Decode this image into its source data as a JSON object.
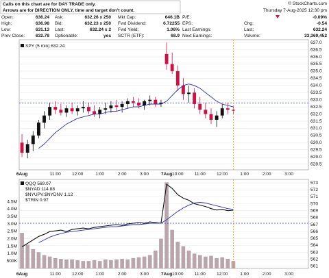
{
  "header": {
    "notice": [
      "Calls on this chart are for DAY TRADE only.",
      "Arrows are for DIRECTION ONLY, time and target don't count."
    ],
    "copyright": "© StockCharts.com",
    "datetime": "Thursday 7-Aug-2025 12:30 pm",
    "quote": {
      "rows": [
        [
          {
            "label": "Open:",
            "value": "636.24"
          },
          {
            "label": "Ask:",
            "value": "632.26 x 250"
          },
          {
            "label": "Mkt Cap:",
            "value": "646.1B"
          },
          {
            "label": "P/E:"
          },
          {
            "value": "-0.09%"
          }
        ],
        [
          {
            "label": "High:",
            "value": "636.98"
          },
          {
            "label": "Bid:",
            "value": "632.23 x 250"
          },
          {
            "label": "Fwd Dividend:",
            "value": "6.72255"
          },
          {
            "label": "EPS:"
          },
          {
            "label": "Chg:",
            "value": "-0.54"
          }
        ],
        [
          {
            "label": "Low:",
            "value": "631.13"
          },
          {
            "label": "Last:",
            "value": "632.24 x 2"
          },
          {
            "label": "Fwd Yield:",
            "value": "1.06%"
          },
          {
            "label": "Last Earnings:"
          },
          {
            "label": "Last:",
            "value": "632.24"
          }
        ],
        [
          {
            "label": "Prev Close:",
            "value": "632.78"
          },
          {
            "label": "Optionable:",
            "value": "yes"
          },
          {
            "label": "SCTR (ETF):",
            "value": "68.9"
          },
          {
            "label": "Next Earnings:"
          },
          {
            "label": "Volume:",
            "value": "33,369,452"
          }
        ]
      ]
    }
  },
  "chart_data": [
    {
      "type": "candlestick",
      "legend": "SPY (5 min) 632.24",
      "categories": [
        "6Aug",
        null,
        null,
        null,
        null,
        null,
        "11:00",
        null,
        null,
        null,
        "12:00",
        null,
        null,
        null,
        "1:00",
        null,
        null,
        null,
        "2:00",
        null,
        null,
        null,
        "3:00",
        null,
        null,
        null,
        "7Aug",
        null,
        "10:00",
        null,
        null,
        null,
        "11:00",
        null,
        null,
        null,
        "12:00",
        null,
        null,
        null,
        "1:00",
        null,
        null,
        null,
        "2:00",
        null,
        null,
        null,
        "3:00",
        null,
        null,
        null
      ],
      "open": [
        630.0,
        629.3,
        629.9,
        630.5,
        631.4,
        631.9,
        632.5,
        632.3,
        632.1,
        632.4,
        632.2,
        632.4,
        632.5,
        632.2,
        632.0,
        632.3,
        632.4,
        632.6,
        632.5,
        632.7,
        632.9,
        632.8,
        632.6,
        632.9,
        633.0,
        632.7,
        636.2,
        635.5,
        635.0,
        634.0,
        633.4,
        633.5,
        632.7,
        632.3,
        632.0,
        631.6,
        631.9,
        632.4,
        632.3,
        null,
        null,
        null,
        null,
        null,
        null,
        null,
        null,
        null,
        null,
        null,
        null,
        null
      ],
      "high": [
        630.6,
        630.2,
        630.8,
        631.6,
        632.2,
        632.8,
        632.9,
        632.7,
        632.6,
        632.8,
        632.6,
        632.9,
        632.8,
        632.6,
        632.5,
        632.8,
        632.9,
        633.0,
        632.9,
        633.1,
        633.2,
        633.1,
        633.0,
        633.3,
        633.2,
        633.0,
        637.0,
        636.3,
        635.4,
        634.5,
        634.0,
        633.8,
        633.2,
        632.8,
        632.4,
        632.2,
        632.7,
        632.8,
        632.6,
        null,
        null,
        null,
        null,
        null,
        null,
        null,
        null,
        null,
        null,
        null,
        null,
        null
      ],
      "low": [
        629.0,
        628.9,
        629.4,
        630.3,
        631.0,
        631.6,
        632.0,
        631.9,
        631.8,
        632.0,
        631.9,
        632.1,
        632.0,
        631.8,
        631.7,
        632.0,
        632.1,
        632.2,
        632.1,
        632.4,
        632.5,
        632.4,
        632.3,
        632.6,
        632.5,
        632.5,
        635.1,
        634.8,
        633.6,
        633.0,
        632.8,
        632.4,
        632.0,
        631.7,
        631.3,
        631.1,
        631.7,
        632.0,
        632.0,
        null,
        null,
        null,
        null,
        null,
        null,
        null,
        null,
        null,
        null,
        null,
        null,
        null
      ],
      "close": [
        629.3,
        629.9,
        630.5,
        631.4,
        631.9,
        632.5,
        632.3,
        632.1,
        632.4,
        632.2,
        632.4,
        632.5,
        632.2,
        632.0,
        632.3,
        632.4,
        632.6,
        632.5,
        632.7,
        632.9,
        632.8,
        632.6,
        632.9,
        633.0,
        632.7,
        632.8,
        635.5,
        635.0,
        634.0,
        633.4,
        633.5,
        632.7,
        632.3,
        632.0,
        631.6,
        631.9,
        632.4,
        632.3,
        632.24,
        null,
        null,
        null,
        null,
        null,
        null,
        null,
        null,
        null,
        null,
        null,
        null,
        null
      ],
      "up_color": "#111111",
      "down_color": "#cc1144",
      "ma": {
        "color": "#2a2ab0",
        "values": [
          null,
          null,
          null,
          629.6,
          629.9,
          630.3,
          630.7,
          631.0,
          631.3,
          631.5,
          631.7,
          631.8,
          631.9,
          632.0,
          632.0,
          632.1,
          632.2,
          632.2,
          632.3,
          632.4,
          632.5,
          632.5,
          632.6,
          632.7,
          632.7,
          632.7,
          632.9,
          633.3,
          633.7,
          634.0,
          634.1,
          634.0,
          633.8,
          633.5,
          633.2,
          632.9,
          632.7,
          632.6,
          632.5,
          null,
          null,
          null,
          null,
          null,
          null,
          null,
          null,
          null,
          null,
          null,
          null,
          null
        ]
      },
      "ref_line": 632.78,
      "ylim": [
        628.1,
        637.2
      ],
      "yticks": [
        628.5,
        {
          "value": 629,
          "label": "629.0"
        },
        629.5,
        {
          "value": 630,
          "label": "630.0"
        },
        630.5,
        {
          "value": 631,
          "label": "631.0"
        },
        631.5,
        {
          "value": 632,
          "label": "632.0"
        },
        632.5,
        {
          "value": 633,
          "label": "633.0"
        },
        633.5,
        {
          "value": 634,
          "label": "634.0"
        },
        634.5,
        {
          "value": 635,
          "label": "635.0"
        },
        635.5,
        {
          "value": 636,
          "label": "636.0"
        },
        636.5,
        {
          "value": 637,
          "label": "637.0"
        }
      ],
      "grid": true
    },
    {
      "type": "line",
      "categories": [
        "6Aug",
        null,
        null,
        null,
        null,
        null,
        "11:00",
        null,
        null,
        null,
        "12:00",
        null,
        null,
        null,
        "1:00",
        null,
        null,
        null,
        "2:00",
        null,
        null,
        null,
        "3:00",
        null,
        null,
        null,
        "7Aug",
        null,
        "10:00",
        null,
        null,
        null,
        "11:00",
        null,
        null,
        null,
        "12:00",
        null,
        null,
        null,
        "1:00",
        null,
        null,
        null,
        "2:00",
        null,
        null,
        null,
        "3:00",
        null,
        null,
        null
      ],
      "series": [
        {
          "name": "QQQ 569.07",
          "color": "#111111",
          "values": [
            563.8,
            564.3,
            564.8,
            565.3,
            565.6,
            566.0,
            566.1,
            566.2,
            566.0,
            566.3,
            566.4,
            566.5,
            566.4,
            566.6,
            566.7,
            566.8,
            566.9,
            567.0,
            566.9,
            567.1,
            567.2,
            567.3,
            567.2,
            567.4,
            567.3,
            567.2,
            572.8,
            572.2,
            571.3,
            570.8,
            570.5,
            570.0,
            569.8,
            569.6,
            569.3,
            569.1,
            569.2,
            569.0,
            569.07,
            null,
            null,
            null,
            null,
            null,
            null,
            null,
            null,
            null,
            null,
            null,
            null,
            null
          ]
        }
      ],
      "indicators": [
        "$NYAD 114.88",
        "$NYUPV:$NYDNV 1.12",
        "$TRIN 0.97"
      ],
      "ma": {
        "color": "#2a2ab0",
        "values": [
          null,
          null,
          null,
          564.4,
          564.8,
          565.2,
          565.5,
          565.7,
          565.9,
          566.0,
          566.1,
          566.2,
          566.3,
          566.4,
          566.5,
          566.6,
          566.7,
          566.7,
          566.8,
          566.9,
          567.0,
          567.0,
          567.1,
          567.2,
          567.2,
          567.2,
          567.7,
          568.3,
          568.9,
          569.4,
          569.8,
          570.1,
          570.2,
          570.1,
          569.9,
          569.7,
          569.5,
          569.3,
          569.2,
          null,
          null,
          null,
          null,
          null,
          null,
          null,
          null,
          null,
          null,
          null,
          null,
          null
        ]
      },
      "ref_line": 567.2,
      "ylim": [
        560.7,
        573.5
      ],
      "yticks": [
        561,
        562,
        563,
        564,
        565,
        566,
        567,
        568,
        569,
        570,
        571,
        572,
        573
      ],
      "volume": {
        "color": "#b9a6ad",
        "values": [
          2400000,
          1600000,
          1300000,
          1100000,
          900000,
          800000,
          700000,
          650000,
          600000,
          600000,
          550000,
          500000,
          500000,
          550000,
          500000,
          600000,
          550000,
          600000,
          650000,
          600000,
          700000,
          750000,
          800000,
          900000,
          1200000,
          2000000,
          5800000,
          2600000,
          1800000,
          1500000,
          1200000,
          1000000,
          900000,
          800000,
          850000,
          700000,
          750000,
          650000,
          500000,
          null,
          null,
          null,
          null,
          null,
          null,
          null,
          null,
          null,
          null,
          null,
          null,
          null
        ]
      },
      "vlim": [
        0,
        6000000
      ],
      "vticks": [
        {
          "value": 500000,
          "label": "500K"
        },
        {
          "value": 1000000,
          "label": "1.0M"
        },
        {
          "value": 1500000,
          "label": "1.5M"
        },
        {
          "value": 2000000,
          "label": "2.0M"
        },
        {
          "value": 2500000,
          "label": "2.5M"
        },
        {
          "value": 3000000,
          "label": "3.0M"
        },
        {
          "value": 3500000,
          "label": "3.5M"
        },
        {
          "value": 4000000,
          "label": "4.0M"
        },
        {
          "value": 4500000,
          "label": "4.5M"
        }
      ],
      "grid": true
    }
  ]
}
